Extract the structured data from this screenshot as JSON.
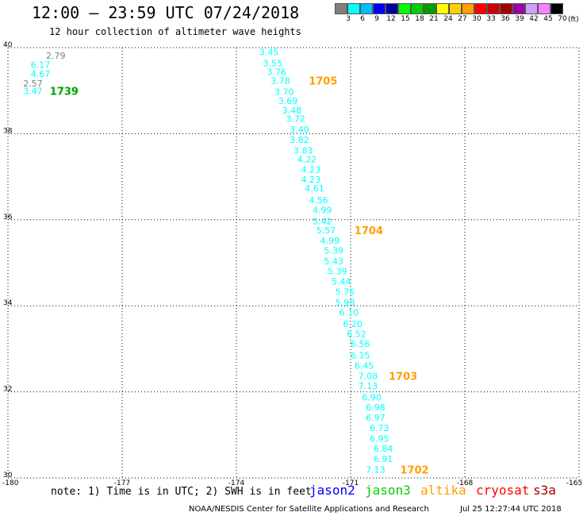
{
  "header": {
    "title": "12:00 – 23:59 UTC 07/24/2018",
    "subtitle": "12 hour collection of altimeter wave heights"
  },
  "legend": {
    "colors": [
      "#7f7f7f",
      "#00ffff",
      "#00bfff",
      "#0000ff",
      "#00009f",
      "#00ff00",
      "#00cf00",
      "#009f00",
      "#ffff00",
      "#ffcf00",
      "#ff9f00",
      "#ff0000",
      "#cf0000",
      "#9f0000",
      "#9f009f",
      "#cfa0ff",
      "#ff80ff",
      "#000000"
    ],
    "ticks": [
      "3",
      "6",
      "9",
      "12",
      "15",
      "18",
      "21",
      "24",
      "27",
      "30",
      "33",
      "36",
      "39",
      "42",
      "45",
      "70"
    ],
    "unit": "(ft)"
  },
  "map": {
    "lon_range": [
      -180,
      -165
    ],
    "lat_range": [
      30,
      40
    ],
    "lon_ticks": [
      "-180",
      "-177",
      "-174",
      "-171",
      "-168",
      "-165"
    ],
    "lat_ticks": [
      "40",
      "38",
      "36",
      "34",
      "32",
      "30"
    ],
    "grid": "dotted"
  },
  "tracks": [
    {
      "color": "#00ffff",
      "labels": [
        [
          "3.45",
          -173.4,
          39.9
        ],
        [
          "3.55",
          -173.3,
          39.64
        ],
        [
          "3.76",
          -173.2,
          39.44
        ],
        [
          "3.78",
          -173.1,
          39.23
        ],
        [
          "3.70",
          -173.0,
          38.98
        ],
        [
          "3.69",
          -172.9,
          38.76
        ],
        [
          "3.48",
          -172.8,
          38.54
        ],
        [
          "3.72",
          -172.7,
          38.35
        ],
        [
          "3.40",
          -172.6,
          38.1
        ],
        [
          "3.82",
          -172.6,
          37.86
        ],
        [
          "3.83",
          -172.5,
          37.61
        ],
        [
          "4.22",
          -172.4,
          37.41
        ],
        [
          "4.23",
          -172.3,
          37.17
        ],
        [
          "4.23",
          -172.3,
          36.94
        ],
        [
          "4.61",
          -172.2,
          36.73
        ],
        [
          "4.56",
          -172.1,
          36.46
        ],
        [
          "4.99",
          -172.0,
          36.23
        ],
        [
          "5.42",
          -172.0,
          35.97
        ],
        [
          "5.57",
          -171.9,
          35.76
        ],
        [
          "4.99",
          -171.8,
          35.52
        ],
        [
          "5.39",
          -171.7,
          35.29
        ],
        [
          "5.43",
          -171.7,
          35.04
        ],
        [
          "5.39",
          -171.6,
          34.81
        ],
        [
          "5.44",
          -171.5,
          34.57
        ],
        [
          "5.76",
          -171.4,
          34.33
        ],
        [
          "5.98",
          -171.4,
          34.08
        ],
        [
          "6.10",
          -171.3,
          33.85
        ],
        [
          "6.20",
          -171.2,
          33.58
        ],
        [
          "6.52",
          -171.1,
          33.35
        ],
        [
          "6.56",
          -171.0,
          33.12
        ],
        [
          "6.15",
          -171.0,
          32.85
        ],
        [
          "6.45",
          -170.9,
          32.61
        ],
        [
          "7.08",
          -170.8,
          32.37
        ],
        [
          "7.13",
          -170.8,
          32.14
        ],
        [
          "6.90",
          -170.7,
          31.87
        ],
        [
          "6.98",
          -170.6,
          31.64
        ],
        [
          "6.97",
          -170.6,
          31.4
        ],
        [
          "6.73",
          -170.5,
          31.16
        ],
        [
          "6.95",
          -170.5,
          30.91
        ],
        [
          "6.84",
          -170.4,
          30.68
        ],
        [
          "6.91",
          -170.4,
          30.44
        ],
        [
          "7.13",
          -170.6,
          30.19
        ],
        [
          "6.17",
          -179.4,
          39.6
        ],
        [
          "4.67",
          -179.4,
          39.39
        ],
        [
          "3.47",
          -179.6,
          38.99
        ]
      ]
    },
    {
      "color": "#7f7f7f",
      "labels": [
        [
          "2.79",
          -179.0,
          39.82
        ],
        [
          "2.57",
          -179.6,
          39.17
        ]
      ]
    }
  ],
  "time_labels": [
    {
      "text": "1705",
      "color": "#ff9f00",
      "lon": -172.1,
      "lat": 39.23
    },
    {
      "text": "1704",
      "color": "#ff9f00",
      "lon": -170.9,
      "lat": 35.76
    },
    {
      "text": "1703",
      "color": "#ff9f00",
      "lon": -170.0,
      "lat": 32.37
    },
    {
      "text": "1702",
      "color": "#ff9f00",
      "lon": -169.7,
      "lat": 30.19
    },
    {
      "text": "1739",
      "color": "#009f00",
      "lon": -178.9,
      "lat": 38.99
    }
  ],
  "footer": {
    "note": "note: 1) Time is in UTC; 2) SWH is in feet",
    "satellites": [
      {
        "name": "jason2",
        "color": "#0000ff"
      },
      {
        "name": "jason3",
        "color": "#00cf00"
      },
      {
        "name": "altika",
        "color": "#ff9f00"
      },
      {
        "name": "cryosat",
        "color": "#ff0000"
      },
      {
        "name": "s3a",
        "color": "#9f0000"
      }
    ],
    "credit": "NOAA/NESDIS Center for Satellite Applications and Research",
    "timestamp": "Jul 25 12:27:44 UTC 2018"
  }
}
